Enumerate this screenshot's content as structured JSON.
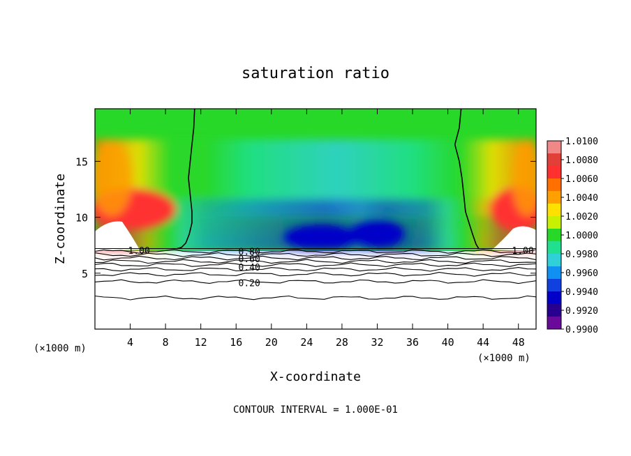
{
  "chart_data": {
    "type": "heatmap",
    "title": "saturation ratio",
    "xlabel": "X-coordinate",
    "ylabel": "Z-coordinate",
    "xunit_left": "(×1000 m)",
    "xunit_right": "(×1000 m)",
    "xlim": [
      0,
      50
    ],
    "ylim": [
      0,
      19.7
    ],
    "xticks": [
      4,
      8,
      12,
      16,
      20,
      24,
      28,
      32,
      36,
      40,
      44,
      48
    ],
    "yticks": [
      5,
      10,
      15
    ],
    "footer": "CONTOUR INTERVAL = 1.000E-01",
    "colorbar": {
      "levels": [
        "1.0100",
        "1.0080",
        "1.0060",
        "1.0040",
        "1.0020",
        "1.0000",
        "0.9980",
        "0.9960",
        "0.9940",
        "0.9920",
        "0.9900"
      ],
      "colors": [
        "#e04038",
        "#ff3030",
        "#ff7000",
        "#ffa000",
        "#ffe000",
        "#c8f000",
        "#28d828",
        "#20e090",
        "#30d0d8",
        "#1090f0",
        "#1040e0",
        "#0000c8",
        "#280090",
        "#6a0a9a"
      ],
      "top_color": "#f08888"
    },
    "cloud_base_z": 7.2,
    "contour_labels": [
      {
        "text": "1.00",
        "x": 5.0,
        "z": 7.05
      },
      {
        "text": "1.00",
        "x": 48.5,
        "z": 7.05
      },
      {
        "text": "0.80",
        "x": 17.5,
        "z": 6.95
      },
      {
        "text": "0.60",
        "x": 17.5,
        "z": 6.3
      },
      {
        "text": "0.40",
        "x": 17.5,
        "z": 5.55
      },
      {
        "text": "0.20",
        "x": 17.5,
        "z": 4.15
      }
    ],
    "contour_lines": [
      {
        "level": "0.90",
        "z": 6.95
      },
      {
        "level": "0.80",
        "z": 6.65
      },
      {
        "level": "0.70",
        "z": 6.35
      },
      {
        "level": "0.60",
        "z": 6.05
      },
      {
        "level": "0.50",
        "z": 5.75
      },
      {
        "level": "0.40",
        "z": 5.35
      },
      {
        "level": "0.30",
        "z": 4.9
      },
      {
        "level": "0.20",
        "z": 4.25
      },
      {
        "level": "0.10",
        "z": 2.8
      }
    ],
    "saturation_contour_1_00": [
      {
        "x": [
          11.3,
          11.2,
          11.0,
          10.8,
          10.6,
          10.8,
          11.0,
          11.0,
          10.7,
          10.3,
          9.8,
          9.3
        ],
        "z": [
          19.7,
          18.0,
          16.5,
          15.0,
          13.5,
          12.0,
          10.5,
          9.5,
          8.5,
          7.7,
          7.3,
          7.2
        ]
      },
      {
        "x": [
          41.5,
          41.3,
          40.8,
          41.3,
          41.6,
          41.8,
          42.0,
          42.4,
          42.8,
          43.2,
          43.5
        ],
        "z": [
          19.7,
          18.0,
          16.5,
          15.0,
          13.5,
          12.0,
          10.5,
          9.5,
          8.5,
          7.6,
          7.2
        ]
      }
    ]
  }
}
